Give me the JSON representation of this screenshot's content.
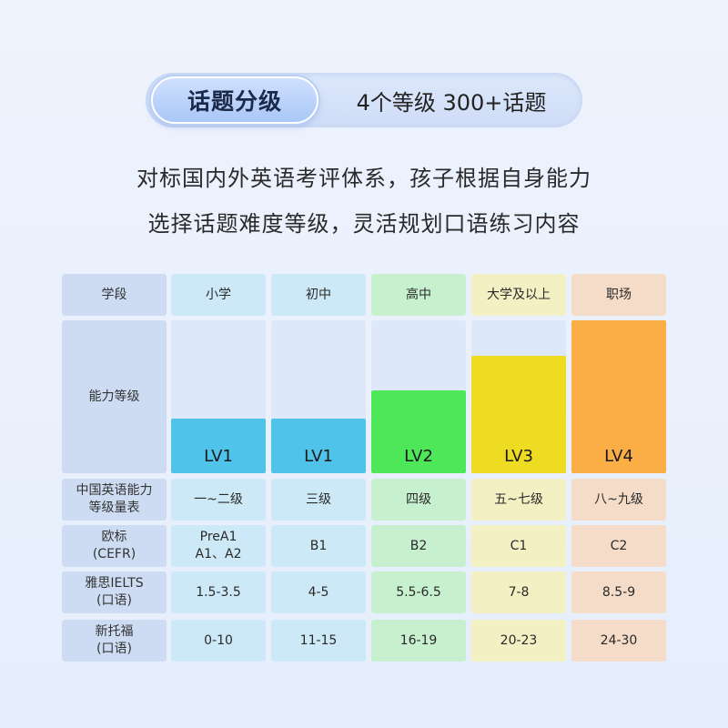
{
  "header": {
    "badge": "话题分级",
    "subtitle": "4个等级 300+话题"
  },
  "intro": {
    "line1": "对标国内外英语考评体系，孩子根据自身能力",
    "line2": "选择话题难度等级，灵活规划口语练习内容"
  },
  "table": {
    "row_labels": {
      "stage": "学段",
      "level": "能力等级",
      "cse": [
        "中国英语能力",
        "等级量表"
      ],
      "cefr": [
        "欧标",
        "(CEFR)"
      ],
      "ielts": [
        "雅思IELTS",
        "(口语)"
      ],
      "toefl": [
        "新托福",
        "(口语)"
      ]
    },
    "columns": [
      {
        "stage": "小学",
        "level": "LV1",
        "level_fraction": 0.36,
        "color": "#4fc3ea",
        "cse": "一~二级",
        "cefr": [
          "PreA1",
          "A1、A2"
        ],
        "ielts": "1.5-3.5",
        "toefl": "0-10"
      },
      {
        "stage": "初中",
        "level": "LV1",
        "level_fraction": 0.36,
        "color": "#4fc3ea",
        "cse": "三级",
        "cefr": [
          "B1"
        ],
        "ielts": "4-5",
        "toefl": "11-15"
      },
      {
        "stage": "高中",
        "level": "LV2",
        "level_fraction": 0.54,
        "color": "#4fe75a",
        "cse": "四级",
        "cefr": [
          "B2"
        ],
        "ielts": "5.5-6.5",
        "toefl": "16-19"
      },
      {
        "stage": "大学及以上",
        "level": "LV3",
        "level_fraction": 0.77,
        "color": "#eedc22",
        "cse": "五~七级",
        "cefr": [
          "C1"
        ],
        "ielts": "7-8",
        "toefl": "20-23"
      },
      {
        "stage": "职场",
        "level": "LV4",
        "level_fraction": 1.0,
        "color": "#fbae46",
        "cse": "八~九级",
        "cefr": [
          "C2"
        ],
        "ielts": "8.5-9",
        "toefl": "24-30"
      }
    ]
  }
}
